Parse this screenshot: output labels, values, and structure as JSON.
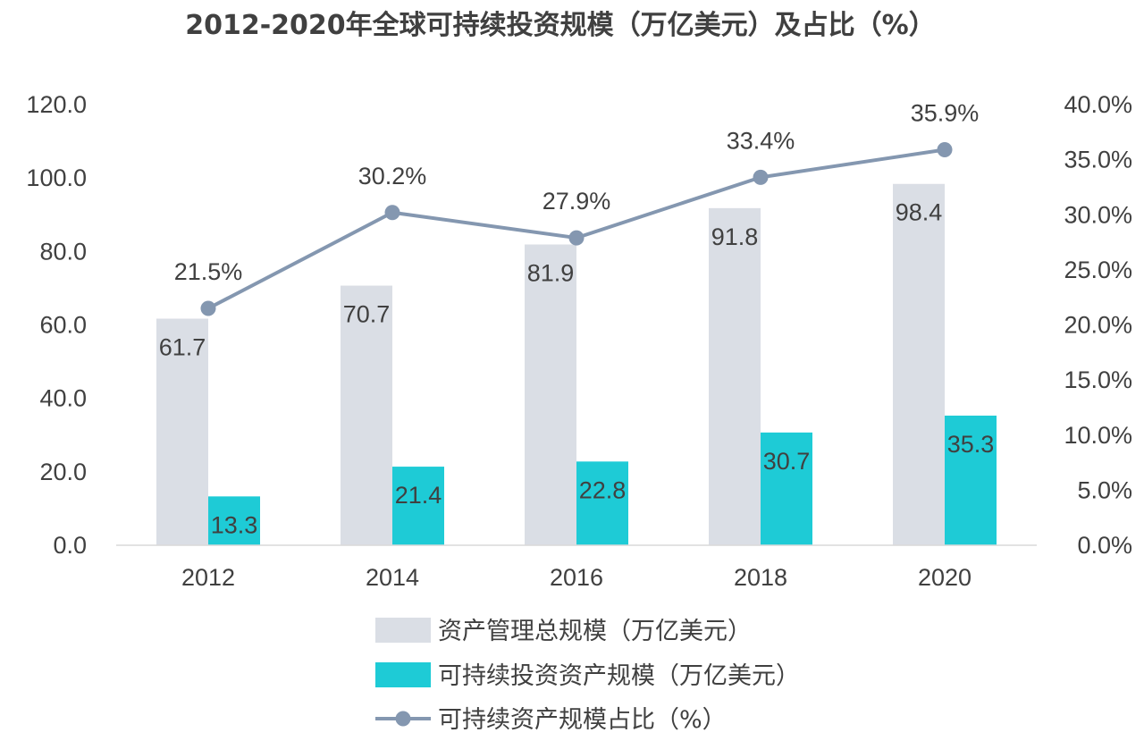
{
  "chart_data": {
    "type": "bar",
    "title": "2012-2020年全球可持续投资规模（万亿美元）及占比（%）",
    "categories": [
      "2012",
      "2014",
      "2016",
      "2018",
      "2020"
    ],
    "series": [
      {
        "name": "资产管理总规模（万亿美元）",
        "type": "bar",
        "axis": "left",
        "values": [
          61.7,
          70.7,
          81.9,
          91.8,
          98.4
        ],
        "labels": [
          "61.7",
          "70.7",
          "81.9",
          "91.8",
          "98.4"
        ],
        "color": "#DADEE5"
      },
      {
        "name": "可持续投资资产规模（万亿美元）",
        "type": "bar",
        "axis": "left",
        "values": [
          13.3,
          21.4,
          22.8,
          30.7,
          35.3
        ],
        "labels": [
          "13.3",
          "21.4",
          "22.8",
          "30.7",
          "35.3"
        ],
        "color": "#1ECBD6"
      },
      {
        "name": "可持续资产规模占比（%）",
        "type": "line",
        "axis": "right",
        "values": [
          21.5,
          30.2,
          27.9,
          33.4,
          35.9
        ],
        "labels": [
          "21.5%",
          "30.2%",
          "27.9%",
          "33.4%",
          "35.9%"
        ],
        "color": "#8497B0"
      }
    ],
    "y_left": {
      "ylim": [
        0,
        120
      ],
      "ticks": [
        "0.0",
        "20.0",
        "40.0",
        "60.0",
        "80.0",
        "100.0",
        "120.0"
      ]
    },
    "y_right": {
      "ylim": [
        0,
        40
      ],
      "ticks": [
        "0.0%",
        "5.0%",
        "10.0%",
        "15.0%",
        "20.0%",
        "25.0%",
        "30.0%",
        "35.0%",
        "40.0%"
      ]
    },
    "xlabel": "",
    "ylabel": "",
    "grid": false,
    "legend_position": "bottom"
  }
}
